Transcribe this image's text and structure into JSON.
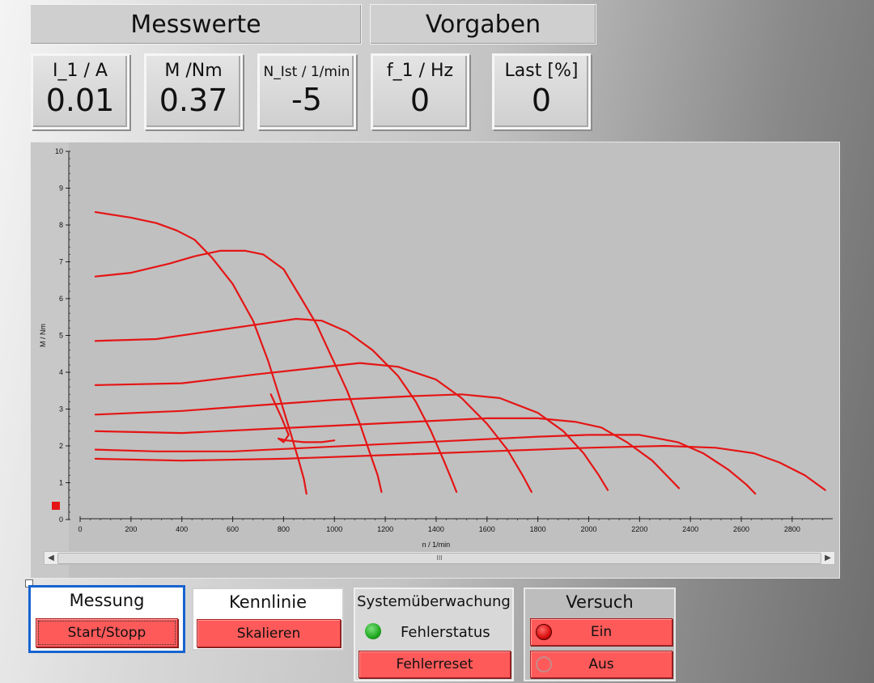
{
  "header": {
    "messwerte": "Messwerte",
    "vorgaben": "Vorgaben"
  },
  "measurements": [
    {
      "label": "I_1 / A",
      "value": "0.01"
    },
    {
      "label": "M /Nm",
      "value": "0.37"
    },
    {
      "label": "N_Ist / 1/min",
      "value": "-5"
    }
  ],
  "setpoints": [
    {
      "label": "f_1 / Hz",
      "value": "0"
    },
    {
      "label": "Last [%]",
      "value": "0"
    }
  ],
  "chart_data": {
    "type": "line",
    "xlabel": "n / 1/min",
    "ylabel": "M / Nm",
    "xlim": [
      0,
      2950
    ],
    "ylim": [
      0,
      10
    ],
    "x_ticks": [
      0,
      200,
      400,
      600,
      800,
      1000,
      1200,
      1400,
      1600,
      1800,
      2000,
      2200,
      2400,
      2600,
      2800
    ],
    "y_ticks": [
      0,
      1,
      2,
      3,
      4,
      5,
      6,
      7,
      8,
      9,
      10
    ],
    "grid": false,
    "color": "#e51515",
    "series": [
      {
        "x": [
          60,
          200,
          300,
          380,
          450,
          520,
          600,
          680,
          740,
          790,
          830,
          860,
          880,
          890
        ],
        "y": [
          8.35,
          8.2,
          8.05,
          7.85,
          7.6,
          7.1,
          6.4,
          5.4,
          4.3,
          3.2,
          2.3,
          1.6,
          1.1,
          0.7
        ]
      },
      {
        "x": [
          60,
          200,
          350,
          450,
          550,
          650,
          720,
          800,
          870,
          930,
          990,
          1050,
          1100,
          1140,
          1170,
          1185
        ],
        "y": [
          6.6,
          6.7,
          6.95,
          7.15,
          7.3,
          7.3,
          7.2,
          6.8,
          6.0,
          5.3,
          4.4,
          3.5,
          2.6,
          1.8,
          1.2,
          0.75
        ]
      },
      {
        "x": [
          60,
          300,
          500,
          700,
          850,
          950,
          1050,
          1150,
          1250,
          1320,
          1380,
          1430,
          1460,
          1480
        ],
        "y": [
          4.85,
          4.9,
          5.1,
          5.3,
          5.45,
          5.4,
          5.1,
          4.6,
          3.9,
          3.2,
          2.4,
          1.6,
          1.1,
          0.75
        ]
      },
      {
        "x": [
          60,
          400,
          700,
          900,
          1100,
          1250,
          1400,
          1500,
          1600,
          1680,
          1740,
          1775
        ],
        "y": [
          3.65,
          3.7,
          3.95,
          4.1,
          4.25,
          4.15,
          3.8,
          3.3,
          2.6,
          1.9,
          1.2,
          0.75
        ]
      },
      {
        "x": [
          60,
          400,
          700,
          1000,
          1300,
          1500,
          1650,
          1800,
          1900,
          1980,
          2040,
          2075
        ],
        "y": [
          2.85,
          2.95,
          3.1,
          3.25,
          3.35,
          3.4,
          3.3,
          2.9,
          2.4,
          1.8,
          1.2,
          0.8
        ]
      },
      {
        "x": [
          60,
          400,
          700,
          1000,
          1300,
          1600,
          1800,
          1950,
          2050,
          2150,
          2250,
          2320,
          2355
        ],
        "y": [
          2.4,
          2.35,
          2.45,
          2.55,
          2.65,
          2.75,
          2.75,
          2.65,
          2.5,
          2.1,
          1.6,
          1.1,
          0.85
        ]
      },
      {
        "x": [
          60,
          300,
          600,
          900,
          1200,
          1500,
          1800,
          2000,
          2200,
          2350,
          2450,
          2550,
          2620,
          2655
        ],
        "y": [
          1.9,
          1.85,
          1.85,
          1.95,
          2.05,
          2.15,
          2.25,
          2.3,
          2.3,
          2.1,
          1.8,
          1.35,
          0.95,
          0.7
        ]
      },
      {
        "x": [
          60,
          400,
          800,
          1200,
          1600,
          2000,
          2300,
          2500,
          2650,
          2750,
          2850,
          2930
        ],
        "y": [
          1.65,
          1.6,
          1.65,
          1.75,
          1.85,
          1.95,
          2.0,
          1.95,
          1.8,
          1.55,
          1.2,
          0.8
        ]
      },
      {
        "x": [
          750,
          790,
          820,
          800,
          780,
          810,
          880,
          950,
          1000
        ],
        "y": [
          3.4,
          2.8,
          2.3,
          2.1,
          2.2,
          2.15,
          2.1,
          2.1,
          2.15
        ]
      }
    ]
  },
  "controls": {
    "messung": {
      "title": "Messung",
      "button": "Start/Stopp"
    },
    "kennlinie": {
      "title": "Kennlinie",
      "button": "Skalieren"
    },
    "system": {
      "title": "Systemüberwachung",
      "status_label": "Fehlerstatus",
      "button": "Fehlerreset",
      "status_color": "#1fa81f"
    },
    "versuch": {
      "title": "Versuch",
      "on": "Ein",
      "off": "Aus",
      "on_lamp": "#d80e0e"
    }
  },
  "scrollbar": {
    "thumb_grip": "III"
  }
}
